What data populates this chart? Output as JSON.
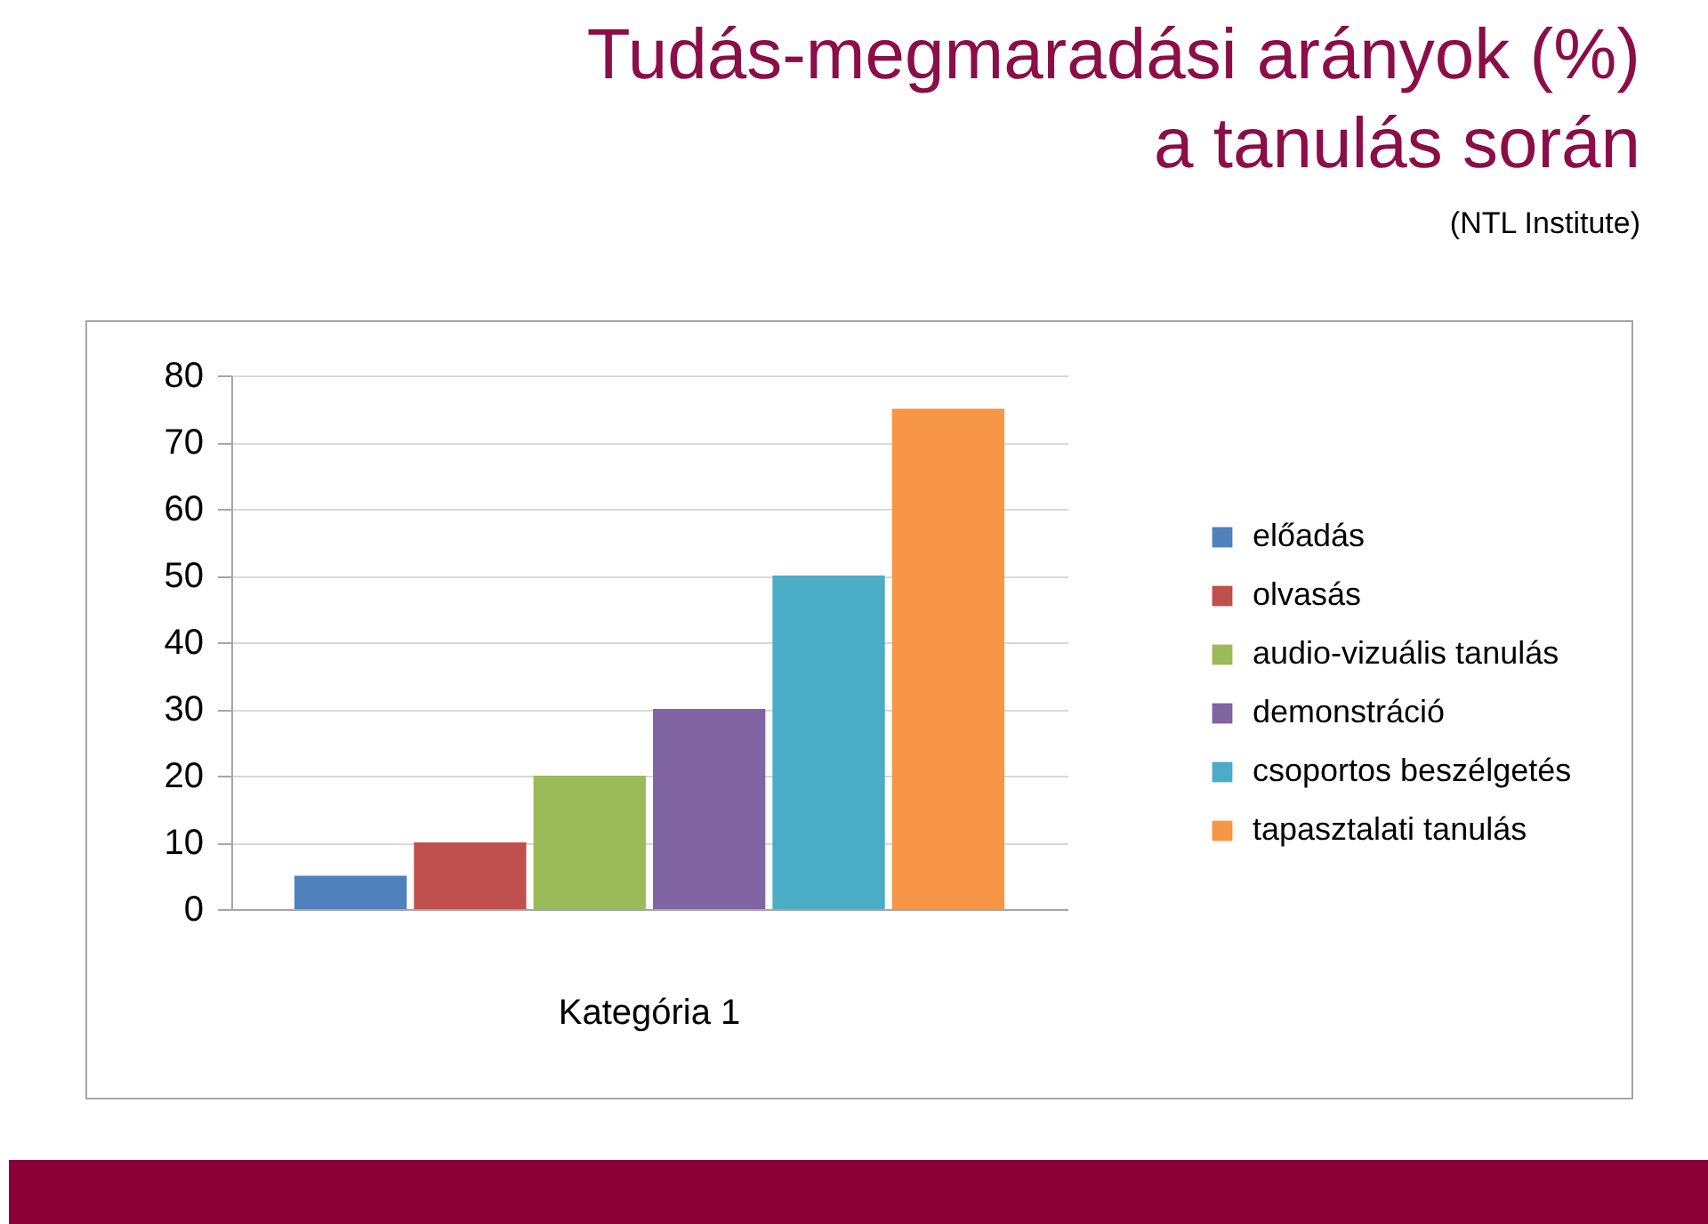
{
  "chart_data": {
    "type": "bar",
    "title": "Tudás-megmaradási arányok (%) a tanulás során",
    "annotations": [
      "(NTL Institute)"
    ],
    "categories": [
      "Kategória 1"
    ],
    "series": [
      {
        "name": "előadás",
        "color": "#4f81bd",
        "values": [
          5
        ]
      },
      {
        "name": "olvasás",
        "color": "#c0504d",
        "values": [
          10
        ]
      },
      {
        "name": "audio-vizuális tanulás",
        "color": "#9bbb59",
        "values": [
          20
        ]
      },
      {
        "name": "demonstráció",
        "color": "#8064a2",
        "values": [
          30
        ]
      },
      {
        "name": "csoportos beszélgetés",
        "color": "#4bacc6",
        "values": [
          50
        ]
      },
      {
        "name": "tapasztalati tanulás",
        "color": "#f79646",
        "values": [
          75
        ]
      }
    ],
    "ylim": [
      0,
      80
    ],
    "yticks": [
      0,
      10,
      20,
      30,
      40,
      50,
      60,
      70,
      80
    ],
    "grid": "y",
    "legend": "right"
  }
}
